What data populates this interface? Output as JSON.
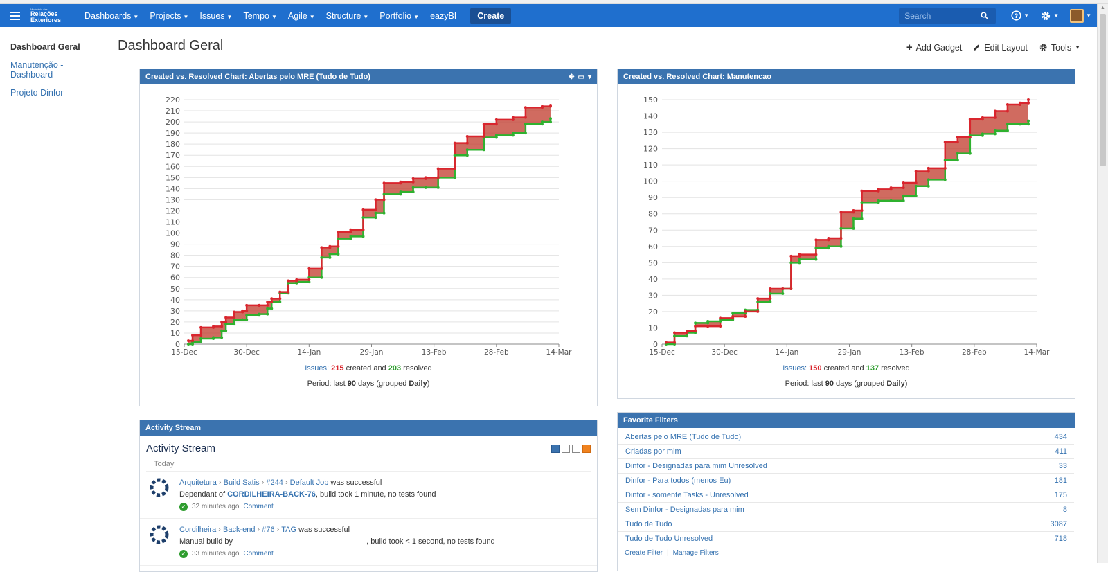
{
  "header": {
    "logo_small": "Ministério das",
    "logo_line1": "Relações",
    "logo_line2": "Exteriores",
    "nav": [
      "Dashboards",
      "Projects",
      "Issues",
      "Tempo",
      "Agile",
      "Structure",
      "Portfolio",
      "eazyBI"
    ],
    "create_label": "Create",
    "search_placeholder": "Search"
  },
  "sidebar": {
    "items": [
      {
        "label": "Dashboard Geral",
        "active": true
      },
      {
        "label": "Manutenção - Dashboard",
        "active": false
      },
      {
        "label": "Projeto Dinfor",
        "active": false
      }
    ]
  },
  "page": {
    "title": "Dashboard Geral",
    "toolbar": {
      "add_gadget": "Add Gadget",
      "edit_layout": "Edit Layout",
      "tools": "Tools"
    }
  },
  "chart1": {
    "header": "Created vs. Resolved Chart: Abertas pelo MRE (Tudo de Tudo)",
    "summary_label": "Issues:",
    "created": "215",
    "created_text": "created and",
    "resolved": "203",
    "resolved_text": "resolved",
    "period_prefix": "Period: last",
    "period_days": "90",
    "period_mid": "days (grouped",
    "period_group": "Daily",
    "period_end": ")"
  },
  "chart2": {
    "header": "Created vs. Resolved Chart: Manutencao",
    "summary_label": "Issues:",
    "created": "150",
    "created_text": "created and",
    "resolved": "137",
    "resolved_text": "resolved",
    "period_prefix": "Period: last",
    "period_days": "90",
    "period_mid": "days (grouped",
    "period_group": "Daily",
    "period_end": ")"
  },
  "chart_data": [
    {
      "type": "area",
      "xlabel": "",
      "ylabel": "",
      "x_ticks": [
        "15-Dec",
        "30-Dec",
        "14-Jan",
        "29-Jan",
        "13-Feb",
        "28-Feb",
        "14-Mar"
      ],
      "ylim": [
        0,
        220
      ],
      "y_ticks": [
        0,
        10,
        20,
        30,
        40,
        50,
        60,
        70,
        80,
        90,
        100,
        110,
        120,
        130,
        140,
        150,
        160,
        170,
        180,
        190,
        200,
        210,
        220
      ],
      "grid": true,
      "series": [
        {
          "color": "#d9262e",
          "x": [
            1,
            2,
            4,
            7,
            9,
            10,
            12,
            14,
            15,
            18,
            20,
            21,
            23,
            25,
            27,
            30,
            33,
            35,
            37,
            40,
            43,
            46,
            48,
            52,
            55,
            58,
            61,
            65,
            68,
            72,
            75,
            79,
            82,
            86,
            88
          ],
          "values": [
            3,
            8,
            15,
            16,
            20,
            24,
            29,
            30,
            35,
            35,
            38,
            41,
            47,
            57,
            58,
            68,
            87,
            88,
            101,
            103,
            121,
            130,
            145,
            146,
            149,
            150,
            158,
            181,
            187,
            198,
            202,
            204,
            213,
            214,
            215
          ]
        },
        {
          "color": "#2fb12f",
          "x": [
            1,
            2,
            4,
            7,
            9,
            10,
            12,
            14,
            15,
            18,
            20,
            21,
            23,
            25,
            27,
            30,
            33,
            35,
            37,
            40,
            43,
            46,
            48,
            52,
            55,
            58,
            61,
            65,
            68,
            72,
            75,
            79,
            82,
            86,
            88
          ],
          "values": [
            0,
            2,
            5,
            6,
            12,
            18,
            22,
            22,
            26,
            27,
            32,
            38,
            46,
            55,
            56,
            60,
            78,
            81,
            95,
            97,
            114,
            118,
            135,
            137,
            141,
            141,
            150,
            170,
            175,
            186,
            188,
            190,
            198,
            200,
            203
          ]
        }
      ]
    },
    {
      "type": "area",
      "xlabel": "",
      "ylabel": "",
      "x_ticks": [
        "15-Dec",
        "30-Dec",
        "14-Jan",
        "29-Jan",
        "13-Feb",
        "28-Feb",
        "14-Mar"
      ],
      "ylim": [
        0,
        150
      ],
      "y_ticks": [
        0,
        10,
        20,
        30,
        40,
        50,
        60,
        70,
        80,
        90,
        100,
        110,
        120,
        130,
        140,
        150
      ],
      "grid": true,
      "series": [
        {
          "color": "#d9262e",
          "x": [
            1,
            3,
            6,
            8,
            11,
            14,
            17,
            20,
            23,
            26,
            29,
            31,
            33,
            37,
            40,
            43,
            46,
            48,
            52,
            55,
            58,
            61,
            64,
            68,
            71,
            74,
            77,
            80,
            83,
            86,
            88
          ],
          "values": [
            1,
            7,
            8,
            11,
            11,
            16,
            17,
            20,
            28,
            34,
            34,
            54,
            55,
            64,
            65,
            81,
            82,
            94,
            95,
            96,
            99,
            106,
            108,
            124,
            127,
            138,
            139,
            143,
            147,
            148,
            150
          ]
        },
        {
          "color": "#2fb12f",
          "x": [
            1,
            3,
            6,
            8,
            11,
            14,
            17,
            20,
            23,
            26,
            29,
            31,
            33,
            37,
            40,
            43,
            46,
            48,
            52,
            55,
            58,
            61,
            64,
            68,
            71,
            74,
            77,
            80,
            83,
            86,
            88
          ],
          "values": [
            0,
            5,
            7,
            13,
            14,
            15,
            19,
            21,
            26,
            31,
            34,
            50,
            52,
            59,
            60,
            71,
            77,
            87,
            88,
            88,
            91,
            97,
            101,
            113,
            117,
            128,
            129,
            131,
            135,
            135,
            137
          ]
        }
      ]
    }
  ],
  "activity": {
    "header": "Activity Stream",
    "title": "Activity Stream",
    "today": "Today",
    "entries": [
      {
        "crumbs": [
          "Arquitetura",
          "Build Satis",
          "#244",
          "Default Job"
        ],
        "status": "was successful",
        "line2_prefix": "Dependant of",
        "line2_key": "CORDILHEIRA-BACK-76",
        "line2_suffix": ", build took 1 minute, no tests found",
        "time": "32 minutes ago",
        "comment": "Comment"
      },
      {
        "crumbs": [
          "Cordilheira",
          "Back-end",
          "#76",
          "TAG"
        ],
        "status": "was successful",
        "line2_prefix": "Manual build by",
        "line2_key": "",
        "line2_suffix": ", build took < 1 second, no tests found",
        "time": "33 minutes ago",
        "comment": "Comment"
      }
    ]
  },
  "favorites": {
    "header": "Favorite Filters",
    "rows": [
      {
        "name": "Abertas pelo MRE (Tudo de Tudo)",
        "count": "434"
      },
      {
        "name": "Criadas por mim",
        "count": "411"
      },
      {
        "name": "Dinfor - Designadas para mim Unresolved",
        "count": "33"
      },
      {
        "name": "Dinfor - Para todos (menos Eu)",
        "count": "181"
      },
      {
        "name": "Dinfor - somente Tasks - Unresolved",
        "count": "175"
      },
      {
        "name": "Sem Dinfor - Designadas para mim",
        "count": "8"
      },
      {
        "name": "Tudo de Tudo",
        "count": "3087"
      },
      {
        "name": "Tudo de Tudo Unresolved",
        "count": "718"
      }
    ],
    "create_filter": "Create Filter",
    "manage_filters": "Manage Filters"
  }
}
